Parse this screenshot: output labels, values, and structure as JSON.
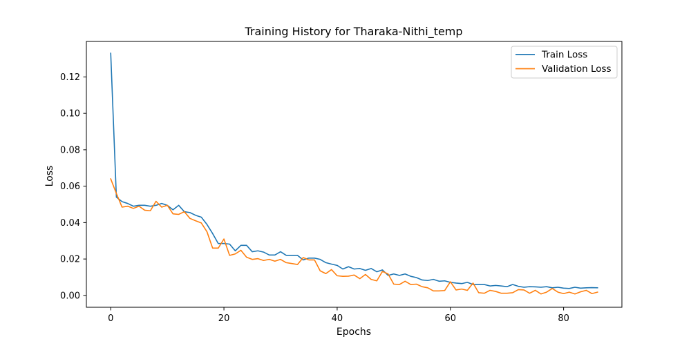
{
  "chart_data": {
    "type": "line",
    "title": "Training History for Tharaka-Nithi_temp",
    "xlabel": "Epochs",
    "ylabel": "Loss",
    "xlim": [
      -4.3,
      90.3
    ],
    "ylim": [
      -0.0065,
      0.1395
    ],
    "xticks": [
      0,
      20,
      40,
      60,
      80
    ],
    "yticks": [
      0.0,
      0.02,
      0.04,
      0.06,
      0.08,
      0.1,
      0.12
    ],
    "xtick_labels": [
      "0",
      "20",
      "40",
      "60",
      "80"
    ],
    "ytick_labels": [
      "0.00",
      "0.02",
      "0.04",
      "0.06",
      "0.08",
      "0.10",
      "0.12"
    ],
    "legend_position": "top-right",
    "grid": false,
    "x": [
      0,
      1,
      2,
      3,
      4,
      5,
      6,
      7,
      8,
      9,
      10,
      11,
      12,
      13,
      14,
      15,
      16,
      17,
      18,
      19,
      20,
      21,
      22,
      23,
      24,
      25,
      26,
      27,
      28,
      29,
      30,
      31,
      32,
      33,
      34,
      35,
      36,
      37,
      38,
      39,
      40,
      41,
      42,
      43,
      44,
      45,
      46,
      47,
      48,
      49,
      50,
      51,
      52,
      53,
      54,
      55,
      56,
      57,
      58,
      59,
      60,
      61,
      62,
      63,
      64,
      65,
      66,
      67,
      68,
      69,
      70,
      71,
      72,
      73,
      74,
      75,
      76,
      77,
      78,
      79,
      80,
      81,
      82,
      83,
      84,
      85,
      86
    ],
    "series": [
      {
        "name": "Train Loss",
        "color": "#1f77b4",
        "values": [
          0.133,
          0.054,
          0.0515,
          0.0505,
          0.049,
          0.0495,
          0.0495,
          0.049,
          0.0495,
          0.0505,
          0.0495,
          0.047,
          0.0495,
          0.046,
          0.0455,
          0.044,
          0.043,
          0.039,
          0.034,
          0.0285,
          0.0285,
          0.0282,
          0.0245,
          0.0275,
          0.0275,
          0.024,
          0.0245,
          0.0238,
          0.0222,
          0.0222,
          0.024,
          0.022,
          0.022,
          0.022,
          0.0195,
          0.0205,
          0.0205,
          0.0198,
          0.018,
          0.0172,
          0.0165,
          0.0145,
          0.0158,
          0.0145,
          0.0148,
          0.0138,
          0.0148,
          0.013,
          0.014,
          0.011,
          0.0118,
          0.011,
          0.0118,
          0.0105,
          0.0098,
          0.0085,
          0.0082,
          0.0088,
          0.0078,
          0.008,
          0.0072,
          0.0068,
          0.0065,
          0.0072,
          0.006,
          0.006,
          0.006,
          0.0052,
          0.0055,
          0.0052,
          0.0048,
          0.006,
          0.005,
          0.0045,
          0.0048,
          0.0047,
          0.0045,
          0.0048,
          0.0042,
          0.0045,
          0.004,
          0.0038,
          0.0045,
          0.004,
          0.0042,
          0.0043,
          0.0042
        ]
      },
      {
        "name": "Validation Loss",
        "color": "#ff7f0e",
        "values": [
          0.064,
          0.056,
          0.0485,
          0.049,
          0.0478,
          0.049,
          0.0468,
          0.0465,
          0.0517,
          0.0485,
          0.0495,
          0.0448,
          0.0445,
          0.046,
          0.0423,
          0.041,
          0.0398,
          0.035,
          0.026,
          0.026,
          0.031,
          0.022,
          0.0228,
          0.0248,
          0.021,
          0.0198,
          0.0202,
          0.0192,
          0.0198,
          0.0188,
          0.0198,
          0.018,
          0.0175,
          0.017,
          0.0208,
          0.0195,
          0.0195,
          0.0135,
          0.012,
          0.0142,
          0.0108,
          0.0105,
          0.0106,
          0.0112,
          0.0092,
          0.0115,
          0.0088,
          0.008,
          0.0132,
          0.0118,
          0.0062,
          0.006,
          0.0078,
          0.006,
          0.0062,
          0.0048,
          0.0042,
          0.0025,
          0.0025,
          0.0027,
          0.0075,
          0.003,
          0.0035,
          0.0028,
          0.0068,
          0.0015,
          0.0012,
          0.0028,
          0.0022,
          0.0012,
          0.0012,
          0.0015,
          0.0032,
          0.003,
          0.0012,
          0.0028,
          0.0008,
          0.0018,
          0.0038,
          0.0018,
          0.001,
          0.0018,
          0.0008,
          0.002,
          0.0028,
          0.001,
          0.0018
        ]
      }
    ]
  }
}
